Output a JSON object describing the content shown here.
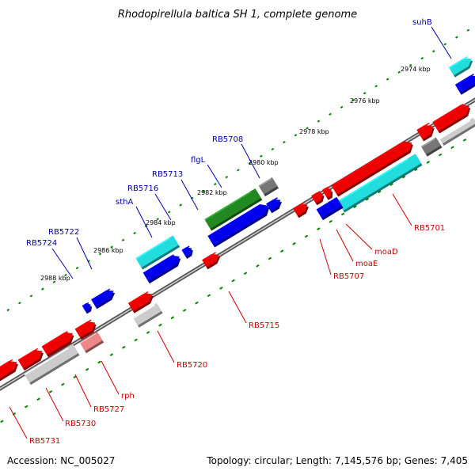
{
  "title": "Rhodopirellula baltica SH 1, complete genome",
  "footer": {
    "accession": "Accession: NC_005027",
    "topology": "Topology: circular; Length: 7,145,576 bp; Genes: 7,405"
  },
  "colors": {
    "red": "#ee0000",
    "blue": "#0000ee",
    "cyan": "#22dddd",
    "green": "#228822",
    "gray": "#777777",
    "lightgray": "#cccccc",
    "pink": "#ee8888",
    "label_blue": "#0000aa",
    "label_red": "#cc0000",
    "tick_green": "#008800"
  },
  "ticks": [
    "2974 kbp",
    "2976 kbp",
    "2978 kbp",
    "2980 kbp",
    "2982 kbp",
    "2984 kbp",
    "2986 kbp",
    "2988 kbp"
  ],
  "labels_top": [
    "suhB",
    "RB5708",
    "flgL",
    "RB5713",
    "RB5716",
    "sthA",
    "RB5722",
    "RB5724"
  ],
  "labels_bottom": [
    "RB5701",
    "moaD",
    "moaE",
    "RB5707",
    "RB5715",
    "RB5720",
    "rph",
    "RB5727",
    "RB5730",
    "RB5731"
  ]
}
